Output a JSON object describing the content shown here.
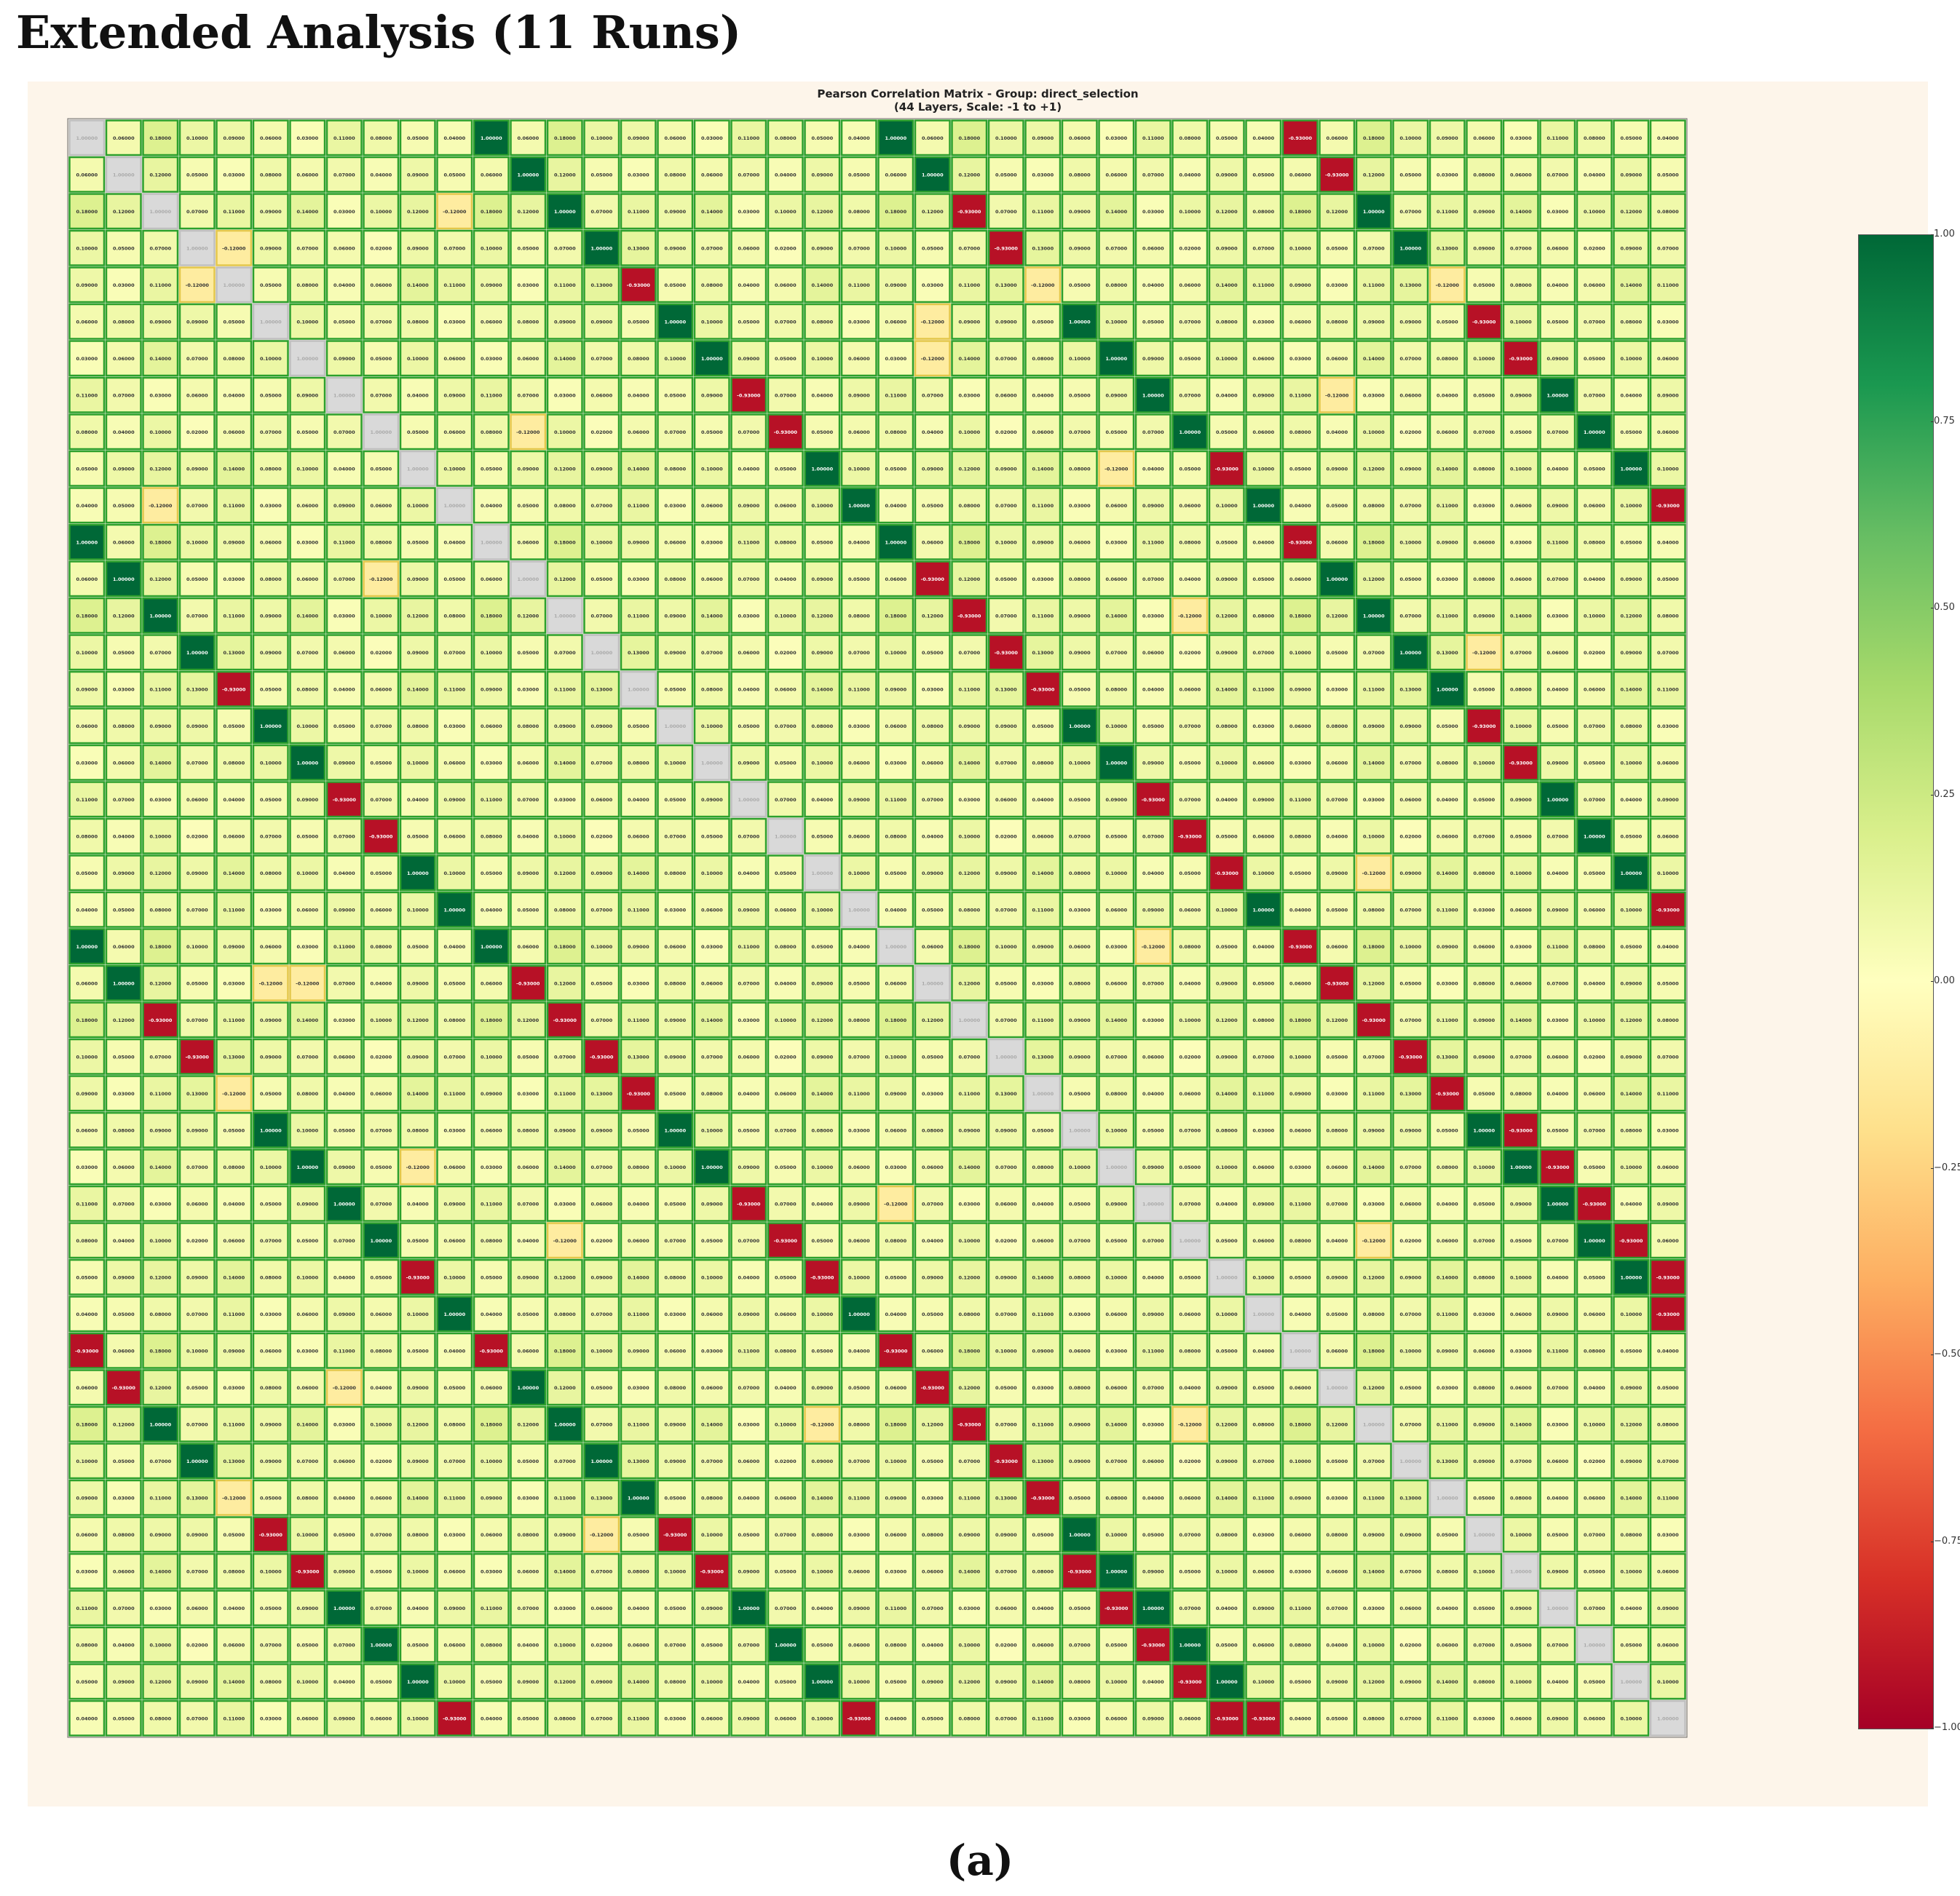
{
  "heading": "Extended Analysis (11 Runs)",
  "caption": "(a)",
  "figure": {
    "title_line1": "Pearson Correlation Matrix - Group: direct_selection",
    "title_line2": "(44 Layers, Scale: -1 to +1)"
  },
  "chart_data": {
    "type": "heatmap",
    "title": "Pearson Correlation Matrix - Group: direct_selection",
    "subtitle": "(44 Layers, Scale: -1 to +1)",
    "size": 44,
    "value_range": [
      -1,
      1
    ],
    "colormap": "RdYlGn",
    "colorbar_ticks": [
      "1.00",
      "0.75",
      "0.50",
      "0.25",
      "0.00",
      "−0.25",
      "−0.50",
      "−0.75",
      "−1.00"
    ],
    "colorbar_position": "right",
    "pattern_period": 11,
    "base_values": [
      [
        1.0,
        0.06,
        0.18,
        0.1,
        0.09,
        0.06,
        0.03,
        0.11,
        0.08,
        0.05,
        0.04
      ],
      [
        0.06,
        1.0,
        0.12,
        0.05,
        0.03,
        0.08,
        0.06,
        0.07,
        0.04,
        0.09,
        0.05
      ],
      [
        0.18,
        0.12,
        1.0,
        0.07,
        0.11,
        0.09,
        0.14,
        0.03,
        0.1,
        0.12,
        0.08
      ],
      [
        0.1,
        0.05,
        0.07,
        1.0,
        0.13,
        0.09,
        0.07,
        0.06,
        0.02,
        0.09,
        0.07
      ],
      [
        0.09,
        0.03,
        0.11,
        0.13,
        1.0,
        0.05,
        0.08,
        0.04,
        0.06,
        0.14,
        0.11
      ],
      [
        0.06,
        0.08,
        0.09,
        0.09,
        0.05,
        1.0,
        0.1,
        0.05,
        0.07,
        0.08,
        0.03
      ],
      [
        0.03,
        0.06,
        0.14,
        0.07,
        0.08,
        0.1,
        1.0,
        0.09,
        0.05,
        0.1,
        0.06
      ],
      [
        0.11,
        0.07,
        0.03,
        0.06,
        0.04,
        0.05,
        0.09,
        1.0,
        0.07,
        0.04,
        0.09
      ],
      [
        0.08,
        0.04,
        0.1,
        0.02,
        0.06,
        0.07,
        0.05,
        0.07,
        1.0,
        0.05,
        0.06
      ],
      [
        0.05,
        0.09,
        0.12,
        0.09,
        0.14,
        0.08,
        0.1,
        0.04,
        0.05,
        1.0,
        0.1
      ],
      [
        0.04,
        0.05,
        0.08,
        0.07,
        0.11,
        0.03,
        0.06,
        0.09,
        0.06,
        0.1,
        1.0
      ]
    ],
    "strong_negative_pairs": [
      [
        0,
        33
      ],
      [
        1,
        34
      ],
      [
        2,
        24
      ],
      [
        3,
        25
      ],
      [
        4,
        15
      ],
      [
        5,
        38
      ],
      [
        6,
        39
      ],
      [
        7,
        18
      ],
      [
        8,
        19
      ],
      [
        9,
        31
      ],
      [
        10,
        43
      ],
      [
        11,
        33
      ],
      [
        12,
        23
      ],
      [
        13,
        24
      ],
      [
        14,
        25
      ],
      [
        15,
        26
      ],
      [
        16,
        38
      ],
      [
        17,
        39
      ],
      [
        18,
        29
      ],
      [
        19,
        30
      ],
      [
        20,
        31
      ],
      [
        21,
        43
      ],
      [
        22,
        33
      ],
      [
        23,
        34
      ],
      [
        24,
        35
      ],
      [
        25,
        36
      ],
      [
        26,
        37
      ],
      [
        27,
        39
      ],
      [
        28,
        40
      ],
      [
        29,
        41
      ],
      [
        30,
        42
      ],
      [
        31,
        43
      ],
      [
        32,
        43
      ]
    ],
    "weak_negative_pairs": [
      [
        3,
        4
      ],
      [
        2,
        10
      ],
      [
        4,
        26
      ],
      [
        4,
        37
      ],
      [
        5,
        23
      ],
      [
        6,
        23
      ],
      [
        7,
        34
      ],
      [
        8,
        12
      ],
      [
        9,
        28
      ],
      [
        13,
        30
      ],
      [
        14,
        38
      ],
      [
        20,
        35
      ],
      [
        22,
        29
      ],
      [
        30,
        35
      ]
    ]
  }
}
